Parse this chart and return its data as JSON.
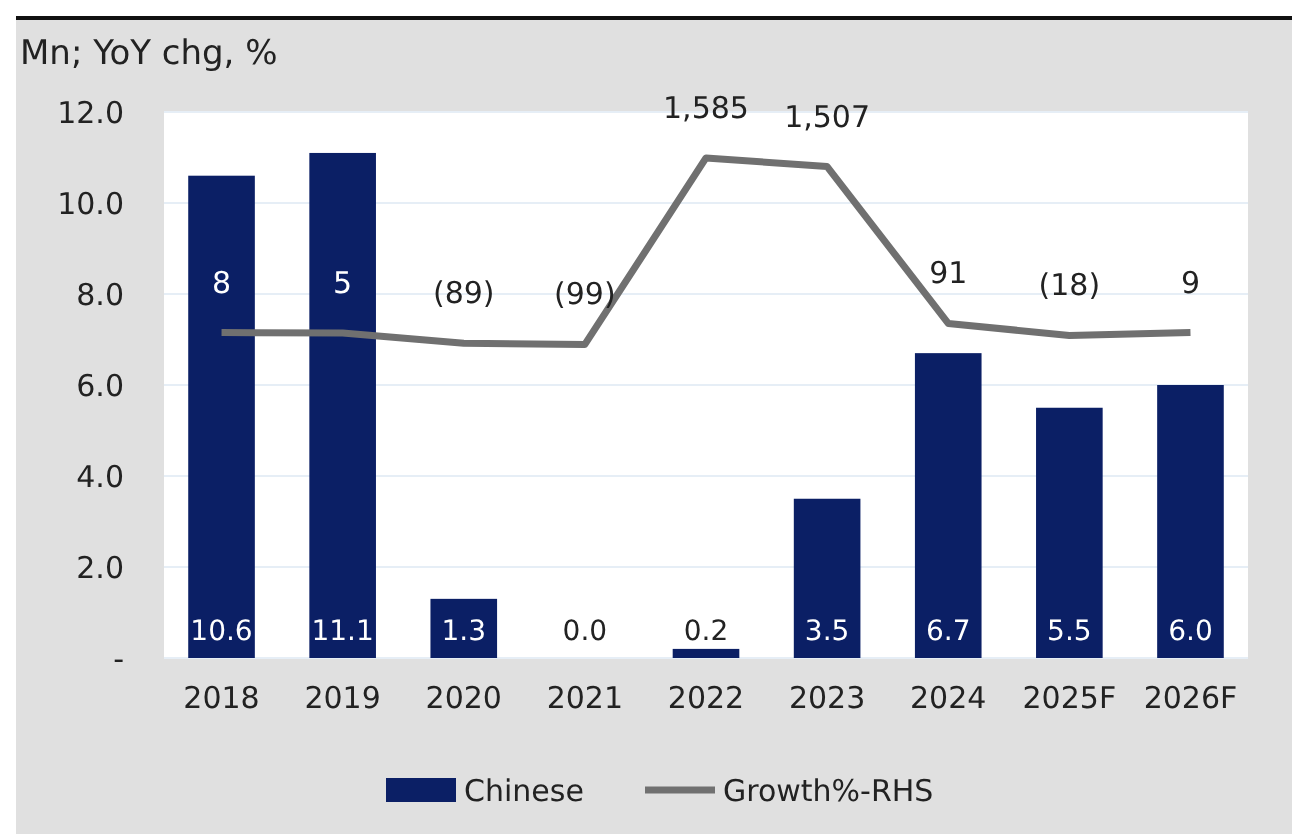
{
  "chart_data": {
    "type": "bar",
    "ylabel": "Mn; YoY chg, %",
    "categories": [
      "2018",
      "2019",
      "2020",
      "2021",
      "2022",
      "2023",
      "2024",
      "2025F",
      "2026F"
    ],
    "series": [
      {
        "name": "Chinese",
        "color": "#0b1f65",
        "values": [
          10.6,
          11.1,
          1.3,
          0.0,
          0.2,
          3.5,
          6.7,
          5.5,
          6.0
        ],
        "value_labels": [
          "10.6",
          "11.1",
          "1.3",
          "0.0",
          "0.2",
          "3.5",
          "6.7",
          "5.5",
          "6.0"
        ]
      },
      {
        "name": "Growth%-RHS",
        "type": "line",
        "axis": "y2",
        "color": "#707070",
        "values": [
          8,
          5,
          -89,
          -99,
          1585,
          1507,
          91,
          -18,
          9
        ],
        "value_labels": [
          "8",
          "5",
          "(89)",
          "(99)",
          "1,585",
          "1,507",
          "91",
          "(18)",
          "9"
        ]
      }
    ],
    "ylim": [
      0,
      12
    ],
    "yticks": [
      {
        "value": 0,
        "label": "-"
      },
      {
        "value": 2,
        "label": "2.0"
      },
      {
        "value": 4,
        "label": "4.0"
      },
      {
        "value": 6,
        "label": "6.0"
      },
      {
        "value": 8,
        "label": "8.0"
      },
      {
        "value": 10,
        "label": "10.0"
      },
      {
        "value": 12,
        "label": "12.0"
      }
    ],
    "y2lim": [
      -2930,
      2000
    ],
    "tick_labels": "y",
    "grid": "y",
    "legend": "bottom",
    "marker": "none",
    "line_style": "solid"
  }
}
